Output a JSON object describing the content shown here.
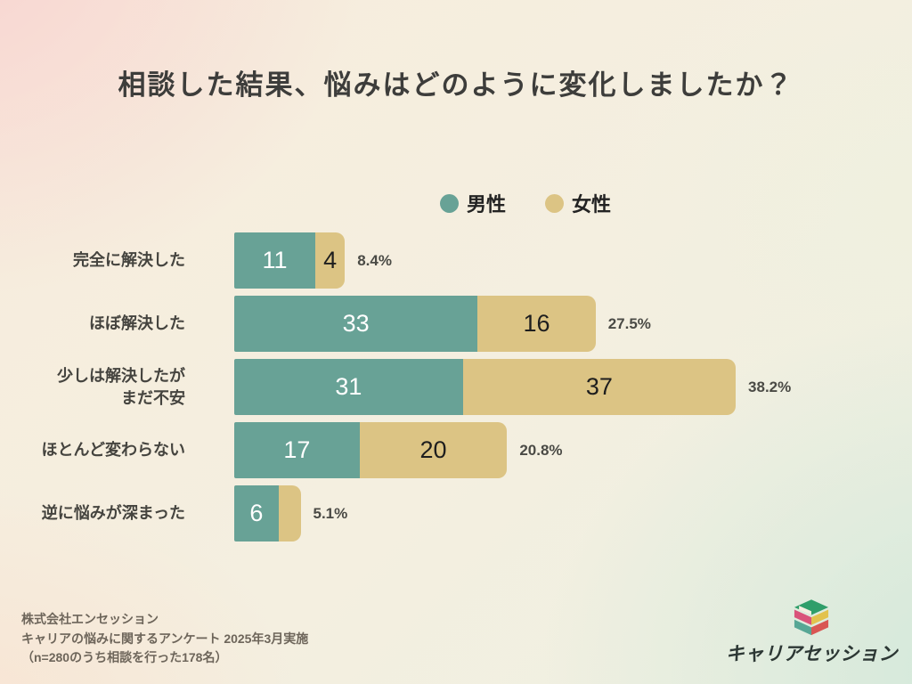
{
  "title": "相談した結果、悩みはどのように変化しましたか？",
  "legend": {
    "male_label": "男性",
    "female_label": "女性",
    "male_color": "#68a296",
    "female_color": "#dcc484"
  },
  "chart_data": {
    "type": "bar",
    "orientation": "horizontal",
    "stacked": true,
    "title": "相談した結果、悩みはどのように変化しましたか？",
    "categories": [
      "完全に解決した",
      "ほぼ解決した",
      "少しは解決したが まだ不安",
      "ほとんど変わらない",
      "逆に悩みが深まった"
    ],
    "series": [
      {
        "name": "男性",
        "color": "#68a296",
        "values": [
          11,
          33,
          31,
          17,
          6
        ]
      },
      {
        "name": "女性",
        "color": "#dcc484",
        "values": [
          4,
          16,
          37,
          20,
          3
        ]
      }
    ],
    "total_percent_labels": [
      "8.4%",
      "27.5%",
      "38.2%",
      "20.8%",
      "5.1%"
    ],
    "xlim": [
      0,
      68
    ],
    "grid": false,
    "legend_position": "top",
    "rows": [
      {
        "label": "完全に解決した",
        "label2": "",
        "male": 11,
        "female": 4,
        "male_label": "11",
        "female_label": "4",
        "pct": "8.4%"
      },
      {
        "label": "ほぼ解決した",
        "label2": "",
        "male": 33,
        "female": 16,
        "male_label": "33",
        "female_label": "16",
        "pct": "27.5%"
      },
      {
        "label": "少しは解決したが",
        "label2": "まだ不安",
        "male": 31,
        "female": 37,
        "male_label": "31",
        "female_label": "37",
        "pct": "38.2%"
      },
      {
        "label": "ほとんど変わらない",
        "label2": "",
        "male": 17,
        "female": 20,
        "male_label": "17",
        "female_label": "20",
        "pct": "20.8%"
      },
      {
        "label": "逆に悩みが深まった",
        "label2": "",
        "male": 6,
        "female": 3,
        "male_label": "6",
        "female_label": "",
        "pct": "5.1%"
      }
    ]
  },
  "footer": {
    "line1": "株式会社エンセッション",
    "line2": "キャリアの悩みに関するアンケート 2025年3月実施",
    "line3": "（n=280のうち相談を行った178名）"
  },
  "logo": {
    "text": "キャリアセッション"
  }
}
